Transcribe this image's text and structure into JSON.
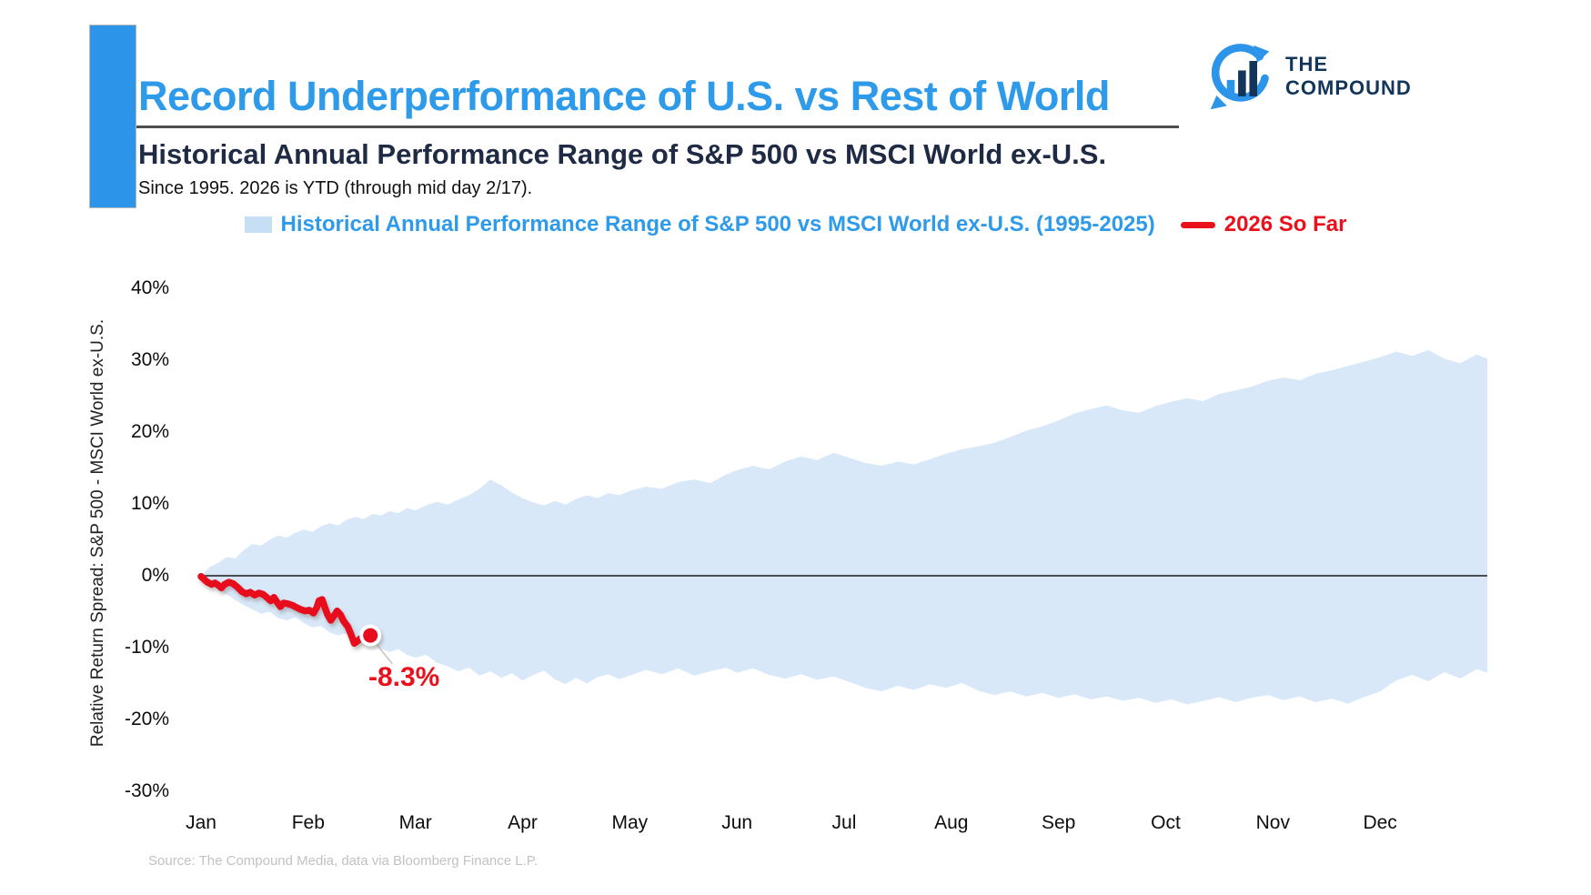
{
  "header": {
    "title": "Record Underperformance of U.S. vs Rest of World",
    "subtitle": "Historical Annual Performance Range of S&P 500 vs MSCI World ex-U.S.",
    "note": "Since 1995. 2026 is YTD (through mid day 2/17)."
  },
  "logo": {
    "line1": "THE",
    "line2": "COMPOUND",
    "navy": "#14355A",
    "blue": "#2C95E9"
  },
  "legend": {
    "range_label": "Historical Annual Performance Range of S&P 500 vs MSCI World ex-U.S. (1995-2025)",
    "range_swatch_color": "#C7DFF5",
    "line_label": "2026 So Far",
    "line_color": "#E8111C"
  },
  "source": "Source: The Compound Media, data via Bloomberg Finance L.P.",
  "chart_data": {
    "type": "area",
    "title": "Historical Annual Performance Range of S&P 500 vs MSCI World ex-U.S.",
    "ylabel": "Relative Return Spread: S&P 500 - MSCI World ex-U.S.",
    "xlabel": "",
    "x_months": [
      "Jan",
      "Feb",
      "Mar",
      "Apr",
      "May",
      "Jun",
      "Jul",
      "Aug",
      "Sep",
      "Oct",
      "Nov",
      "Dec"
    ],
    "y_ticks": [
      "40%",
      "30%",
      "20%",
      "10%",
      "0%",
      "-10%",
      "-20%",
      "-30%"
    ],
    "y_tick_values": [
      40,
      30,
      20,
      10,
      0,
      -10,
      -20,
      -30
    ],
    "ylim": [
      -30,
      42
    ],
    "grid": false,
    "legend_position": "top",
    "band_color": "#D8E8F9",
    "zero_line_color": "#1a1a1a",
    "series": [
      {
        "name": "Historical Annual Performance Range of S&P 500 vs MSCI World ex-U.S. (1995-2025)",
        "type": "band",
        "points_mfrac_hi_lo": [
          [
            0.0,
            0.0,
            0.0
          ],
          [
            0.08,
            1.2,
            -1.2
          ],
          [
            0.16,
            1.8,
            -2.0
          ],
          [
            0.24,
            2.6,
            -2.6
          ],
          [
            0.32,
            2.4,
            -3.4
          ],
          [
            0.4,
            3.6,
            -4.1
          ],
          [
            0.48,
            4.4,
            -4.7
          ],
          [
            0.56,
            4.2,
            -5.3
          ],
          [
            0.64,
            5.0,
            -5.0
          ],
          [
            0.72,
            5.6,
            -5.9
          ],
          [
            0.8,
            5.3,
            -6.2
          ],
          [
            0.88,
            6.0,
            -5.8
          ],
          [
            0.96,
            6.4,
            -6.6
          ],
          [
            1.04,
            6.1,
            -7.2
          ],
          [
            1.12,
            6.9,
            -7.0
          ],
          [
            1.2,
            7.3,
            -7.9
          ],
          [
            1.28,
            7.0,
            -8.3
          ],
          [
            1.36,
            7.8,
            -8.0
          ],
          [
            1.44,
            8.2,
            -8.8
          ],
          [
            1.52,
            7.9,
            -9.4
          ],
          [
            1.6,
            8.6,
            -9.0
          ],
          [
            1.68,
            8.4,
            -10.2
          ],
          [
            1.76,
            9.0,
            -10.6
          ],
          [
            1.84,
            8.7,
            -10.2
          ],
          [
            1.92,
            9.4,
            -11.0
          ],
          [
            2.0,
            9.1,
            -11.4
          ],
          [
            2.1,
            9.8,
            -11.0
          ],
          [
            2.2,
            10.3,
            -12.1
          ],
          [
            2.3,
            9.9,
            -12.6
          ],
          [
            2.4,
            10.6,
            -13.3
          ],
          [
            2.5,
            11.2,
            -12.8
          ],
          [
            2.6,
            12.1,
            -13.9
          ],
          [
            2.7,
            13.4,
            -13.3
          ],
          [
            2.8,
            12.6,
            -14.2
          ],
          [
            2.9,
            11.6,
            -13.6
          ],
          [
            3.0,
            10.8,
            -14.6
          ],
          [
            3.1,
            10.2,
            -13.8
          ],
          [
            3.2,
            9.8,
            -13.2
          ],
          [
            3.3,
            10.4,
            -14.4
          ],
          [
            3.4,
            9.9,
            -15.1
          ],
          [
            3.5,
            10.7,
            -14.2
          ],
          [
            3.6,
            11.2,
            -15.0
          ],
          [
            3.7,
            10.8,
            -14.1
          ],
          [
            3.8,
            11.5,
            -13.7
          ],
          [
            3.9,
            11.2,
            -14.4
          ],
          [
            4.0,
            11.8,
            -13.9
          ],
          [
            4.15,
            12.4,
            -13.1
          ],
          [
            4.3,
            12.1,
            -13.7
          ],
          [
            4.45,
            13.0,
            -12.9
          ],
          [
            4.6,
            13.4,
            -13.9
          ],
          [
            4.75,
            12.9,
            -13.3
          ],
          [
            4.9,
            14.1,
            -12.8
          ],
          [
            5.0,
            14.7,
            -13.5
          ],
          [
            5.15,
            15.3,
            -12.9
          ],
          [
            5.3,
            14.8,
            -13.8
          ],
          [
            5.45,
            15.9,
            -14.3
          ],
          [
            5.6,
            16.6,
            -13.7
          ],
          [
            5.75,
            16.1,
            -14.5
          ],
          [
            5.9,
            17.1,
            -14.0
          ],
          [
            6.05,
            16.4,
            -14.8
          ],
          [
            6.2,
            15.7,
            -15.6
          ],
          [
            6.35,
            15.3,
            -16.1
          ],
          [
            6.5,
            15.9,
            -15.3
          ],
          [
            6.65,
            15.5,
            -15.9
          ],
          [
            6.8,
            16.2,
            -15.1
          ],
          [
            6.95,
            17.0,
            -15.6
          ],
          [
            7.1,
            17.6,
            -14.9
          ],
          [
            7.25,
            18.0,
            -16.0
          ],
          [
            7.4,
            18.5,
            -16.6
          ],
          [
            7.55,
            19.3,
            -16.1
          ],
          [
            7.7,
            20.2,
            -16.8
          ],
          [
            7.85,
            20.8,
            -16.3
          ],
          [
            8.0,
            21.6,
            -17.0
          ],
          [
            8.15,
            22.6,
            -16.5
          ],
          [
            8.3,
            23.2,
            -17.2
          ],
          [
            8.45,
            23.7,
            -16.8
          ],
          [
            8.6,
            23.0,
            -17.4
          ],
          [
            8.75,
            22.7,
            -17.0
          ],
          [
            8.9,
            23.6,
            -17.7
          ],
          [
            9.05,
            24.2,
            -17.2
          ],
          [
            9.2,
            24.7,
            -17.9
          ],
          [
            9.35,
            24.3,
            -17.4
          ],
          [
            9.5,
            25.3,
            -16.9
          ],
          [
            9.65,
            25.8,
            -17.6
          ],
          [
            9.8,
            26.3,
            -17.0
          ],
          [
            9.95,
            27.1,
            -16.6
          ],
          [
            10.1,
            27.6,
            -17.3
          ],
          [
            10.25,
            27.2,
            -16.8
          ],
          [
            10.4,
            28.1,
            -17.6
          ],
          [
            10.55,
            28.6,
            -17.1
          ],
          [
            10.7,
            29.2,
            -17.8
          ],
          [
            10.85,
            29.8,
            -16.9
          ],
          [
            11.0,
            30.4,
            -16.1
          ],
          [
            11.15,
            31.2,
            -14.6
          ],
          [
            11.3,
            30.6,
            -13.8
          ],
          [
            11.45,
            31.4,
            -14.7
          ],
          [
            11.6,
            30.2,
            -13.4
          ],
          [
            11.75,
            29.6,
            -14.3
          ],
          [
            11.9,
            30.8,
            -13.0
          ],
          [
            12.0,
            30.2,
            -13.5
          ]
        ]
      },
      {
        "name": "2026 So Far",
        "type": "line",
        "color": "#E8111C",
        "points_mfrac_val": [
          [
            0.0,
            -0.1
          ],
          [
            0.03,
            -0.5
          ],
          [
            0.06,
            -0.9
          ],
          [
            0.1,
            -1.2
          ],
          [
            0.13,
            -1.0
          ],
          [
            0.16,
            -1.3
          ],
          [
            0.19,
            -1.7
          ],
          [
            0.22,
            -1.2
          ],
          [
            0.26,
            -0.9
          ],
          [
            0.3,
            -1.1
          ],
          [
            0.34,
            -1.6
          ],
          [
            0.38,
            -2.2
          ],
          [
            0.42,
            -2.5
          ],
          [
            0.46,
            -2.3
          ],
          [
            0.5,
            -2.7
          ],
          [
            0.54,
            -2.4
          ],
          [
            0.58,
            -2.6
          ],
          [
            0.62,
            -3.1
          ],
          [
            0.65,
            -3.5
          ],
          [
            0.68,
            -3.0
          ],
          [
            0.71,
            -3.7
          ],
          [
            0.74,
            -4.3
          ],
          [
            0.77,
            -3.8
          ],
          [
            0.81,
            -3.9
          ],
          [
            0.85,
            -4.1
          ],
          [
            0.89,
            -4.4
          ],
          [
            0.93,
            -4.7
          ],
          [
            0.97,
            -4.9
          ],
          [
            1.01,
            -4.8
          ],
          [
            1.05,
            -5.2
          ],
          [
            1.08,
            -4.4
          ],
          [
            1.1,
            -3.5
          ],
          [
            1.13,
            -3.3
          ],
          [
            1.15,
            -4.2
          ],
          [
            1.18,
            -5.4
          ],
          [
            1.21,
            -6.2
          ],
          [
            1.24,
            -5.6
          ],
          [
            1.27,
            -4.9
          ],
          [
            1.3,
            -5.4
          ],
          [
            1.33,
            -6.3
          ],
          [
            1.37,
            -7.1
          ],
          [
            1.4,
            -8.2
          ],
          [
            1.43,
            -9.4
          ],
          [
            1.46,
            -9.1
          ],
          [
            1.5,
            -8.6
          ],
          [
            1.54,
            -8.5
          ],
          [
            1.58,
            -8.3
          ]
        ]
      }
    ],
    "annotation": {
      "text": "-8.3%",
      "value": -8.3,
      "month_frac": 1.58
    }
  }
}
